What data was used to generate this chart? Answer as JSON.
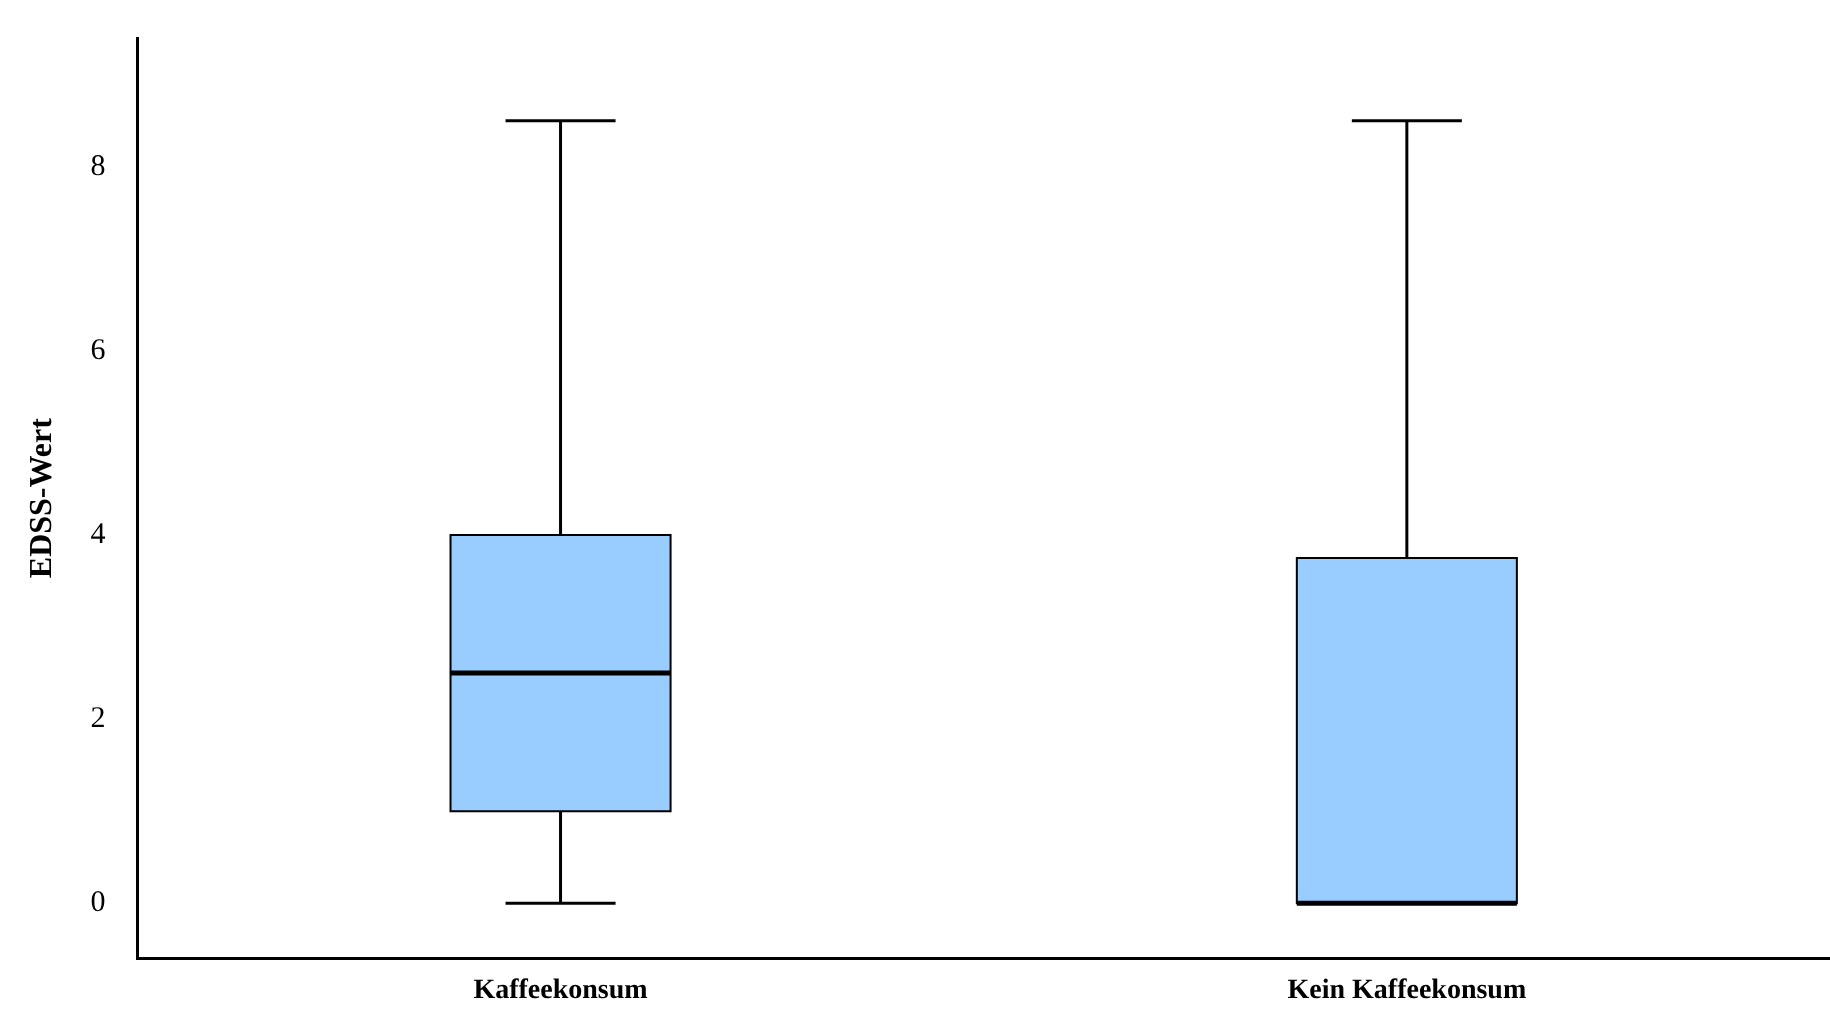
{
  "chart_data": {
    "type": "box",
    "ylabel": "EDSS-Wert",
    "categories": [
      "Kaffeekonsum",
      "Kein Kaffeekonsum"
    ],
    "color": "#99ccff",
    "boxes": [
      {
        "low": 0,
        "q1": 1,
        "median": 2.5,
        "q3": 4,
        "high": 8.5
      },
      {
        "low": 0,
        "q1": 0,
        "median": 0,
        "q3": 3.75,
        "high": 8.5
      }
    ],
    "ylim": [
      -0.6,
      9.4
    ],
    "yticks": [
      0,
      2,
      4,
      6,
      8
    ],
    "grid": false,
    "legend": false
  }
}
